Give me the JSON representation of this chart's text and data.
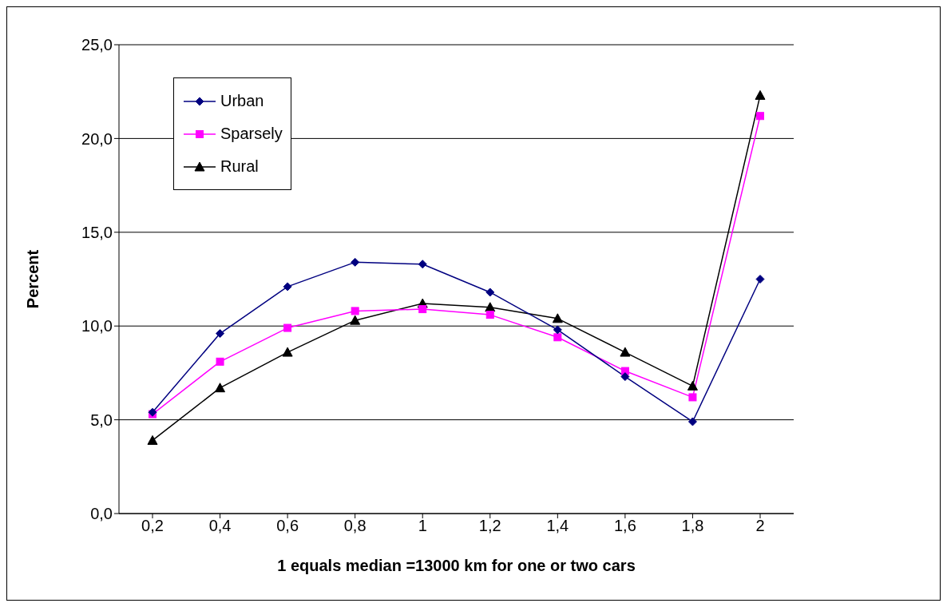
{
  "chart_data": {
    "type": "line",
    "xlabel": "1 equals median =13000 km for one or two cars",
    "ylabel": "Percent",
    "categories": [
      "0,2",
      "0,4",
      "0,6",
      "0,8",
      "1",
      "1,2",
      "1,4",
      "1,6",
      "1,8",
      "2"
    ],
    "series": [
      {
        "name": "Urban",
        "color": "#000080",
        "marker": "diamond",
        "values": [
          5.4,
          9.6,
          12.1,
          13.4,
          13.3,
          11.8,
          9.8,
          7.3,
          4.9,
          12.5
        ]
      },
      {
        "name": "Sparsely",
        "color": "#ff00ff",
        "marker": "square",
        "values": [
          5.3,
          8.1,
          9.9,
          10.8,
          10.9,
          10.6,
          9.4,
          7.6,
          6.2,
          21.2
        ]
      },
      {
        "name": "Rural",
        "color": "#000000",
        "marker": "triangle",
        "values": [
          3.9,
          6.7,
          8.6,
          10.3,
          11.2,
          11.0,
          10.4,
          8.6,
          6.8,
          22.3
        ]
      }
    ],
    "ylim": [
      0,
      25
    ],
    "yticks": [
      {
        "value": 0,
        "label": "0,0"
      },
      {
        "value": 5,
        "label": "5,0"
      },
      {
        "value": 10,
        "label": "10,0"
      },
      {
        "value": 15,
        "label": "15,0"
      },
      {
        "value": 20,
        "label": "20,0"
      },
      {
        "value": 25,
        "label": "25,0"
      }
    ],
    "grid": "y",
    "legend": "top left"
  }
}
